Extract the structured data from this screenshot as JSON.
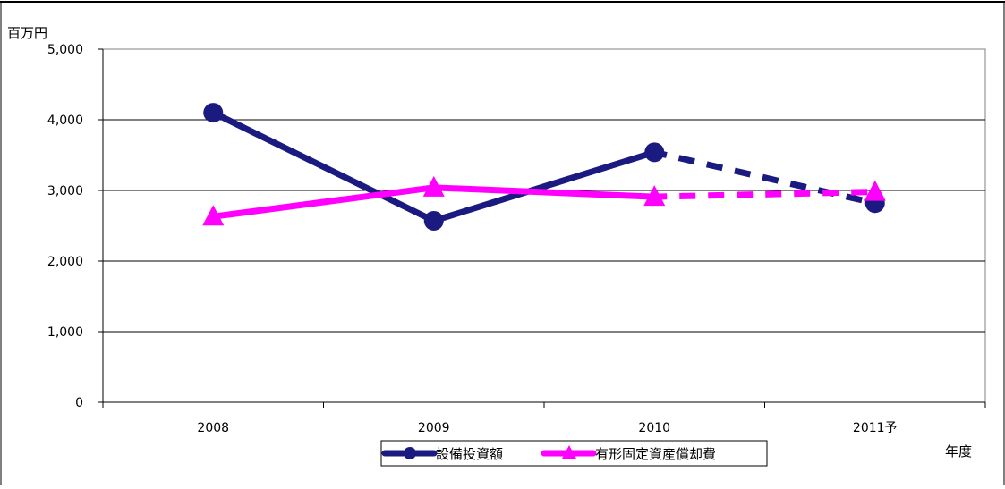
{
  "chart_data": {
    "type": "line",
    "categories": [
      "2008",
      "2009",
      "2010",
      "2011予"
    ],
    "y_unit_label": "百万円",
    "x_unit_label": "年度",
    "ylim": [
      0,
      5000
    ],
    "yticks": [
      0,
      1000,
      2000,
      3000,
      4000,
      5000
    ],
    "ytick_labels": [
      "0",
      "1,000",
      "2,000",
      "3,000",
      "4,000",
      "5,000"
    ],
    "grid": true,
    "legend_position": "bottom",
    "series": [
      {
        "name": "設備投資額",
        "values": [
          4100,
          2570,
          3540,
          2820
        ],
        "color": "#1a1a80",
        "marker": "circle",
        "forecast_from_index": 2
      },
      {
        "name": "有形固定資産償却費",
        "values": [
          2630,
          3040,
          2910,
          2980
        ],
        "color": "#ff00ff",
        "marker": "triangle",
        "forecast_from_index": 2
      }
    ]
  }
}
